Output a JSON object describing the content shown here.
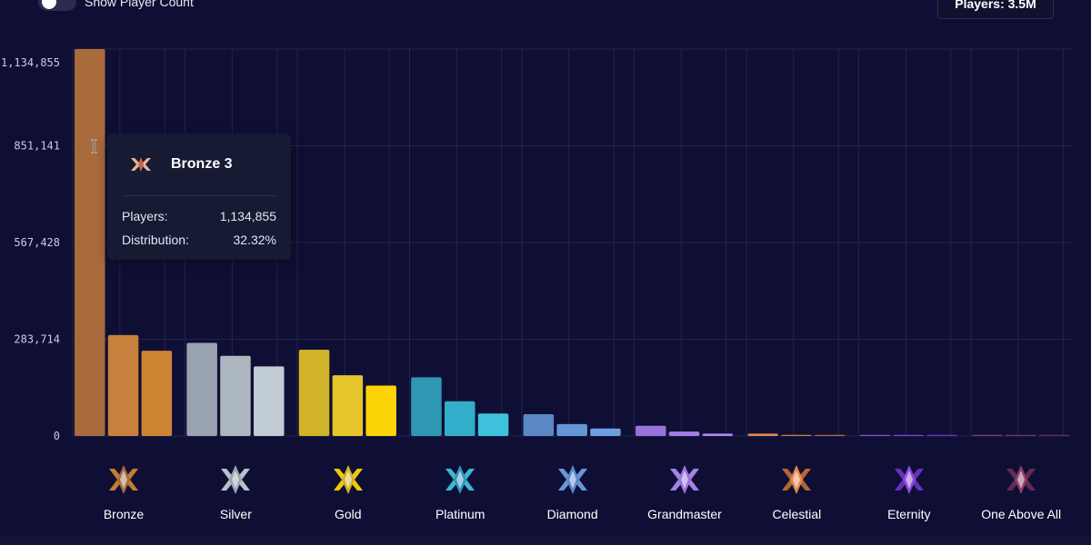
{
  "controls": {
    "toggle_label": "Show Player Count",
    "total_players_label": "Players: 3.5M"
  },
  "tooltip": {
    "title": "Bronze 3",
    "players_label": "Players:",
    "players_value": "1,134,855",
    "distribution_label": "Distribution:",
    "distribution_value": "32.32%"
  },
  "chart_data": {
    "type": "bar",
    "title": "",
    "xlabel": "",
    "ylabel": "",
    "ylim": [
      0,
      1134855
    ],
    "y_ticks": [
      0,
      283714,
      567428,
      851141,
      1134855
    ],
    "y_tick_labels": [
      "0",
      "283,714",
      "567,428",
      "851,141",
      "1,134,855"
    ],
    "groups": [
      {
        "name": "Bronze",
        "icon": "bronze-rank-icon",
        "colors": [
          "#a96b3c",
          "#c7813c",
          "#cc8433"
        ],
        "values": [
          1134855,
          296000,
          250000
        ]
      },
      {
        "name": "Silver",
        "icon": "silver-rank-icon",
        "colors": [
          "#9aa4b0",
          "#adb7c0",
          "#c1ccd4"
        ],
        "values": [
          273000,
          235000,
          204000
        ]
      },
      {
        "name": "Gold",
        "icon": "gold-rank-icon",
        "colors": [
          "#d1b32a",
          "#e6c62a",
          "#fdd407"
        ],
        "values": [
          253000,
          178000,
          148000
        ]
      },
      {
        "name": "Platinum",
        "icon": "platinum-rank-icon",
        "colors": [
          "#2e98b4",
          "#32aecb",
          "#3ec1dc"
        ],
        "values": [
          172000,
          102000,
          66000
        ]
      },
      {
        "name": "Diamond",
        "icon": "diamond-rank-icon",
        "colors": [
          "#5b88c6",
          "#6596d5",
          "#6d9fe0"
        ],
        "values": [
          64000,
          35000,
          22000
        ]
      },
      {
        "name": "Grandmaster",
        "icon": "grandmaster-rank-icon",
        "colors": [
          "#9a72dc",
          "#a47ee6",
          "#ae8af0"
        ],
        "values": [
          30000,
          13000,
          7000
        ]
      },
      {
        "name": "Celestial",
        "icon": "celestial-rank-icon",
        "colors": [
          "#e08a4e",
          "#cf7a3e",
          "#bf6a34"
        ],
        "values": [
          7000,
          3000,
          2000
        ]
      },
      {
        "name": "Eternity",
        "icon": "eternity-rank-icon",
        "colors": [
          "#8a4ad6",
          "#7a3ed0",
          "#6a34c8"
        ],
        "values": [
          1200,
          1000,
          900
        ]
      },
      {
        "name": "One Above All",
        "icon": "one-above-all-rank-icon",
        "colors": [
          "#8a3c6c",
          "#7a3460",
          "#6a2c54"
        ],
        "values": [
          800,
          700,
          600
        ]
      }
    ]
  },
  "colors": {
    "background": "#0f0f35",
    "grid": "#23244a",
    "tooltip_bg": "#161a33"
  }
}
